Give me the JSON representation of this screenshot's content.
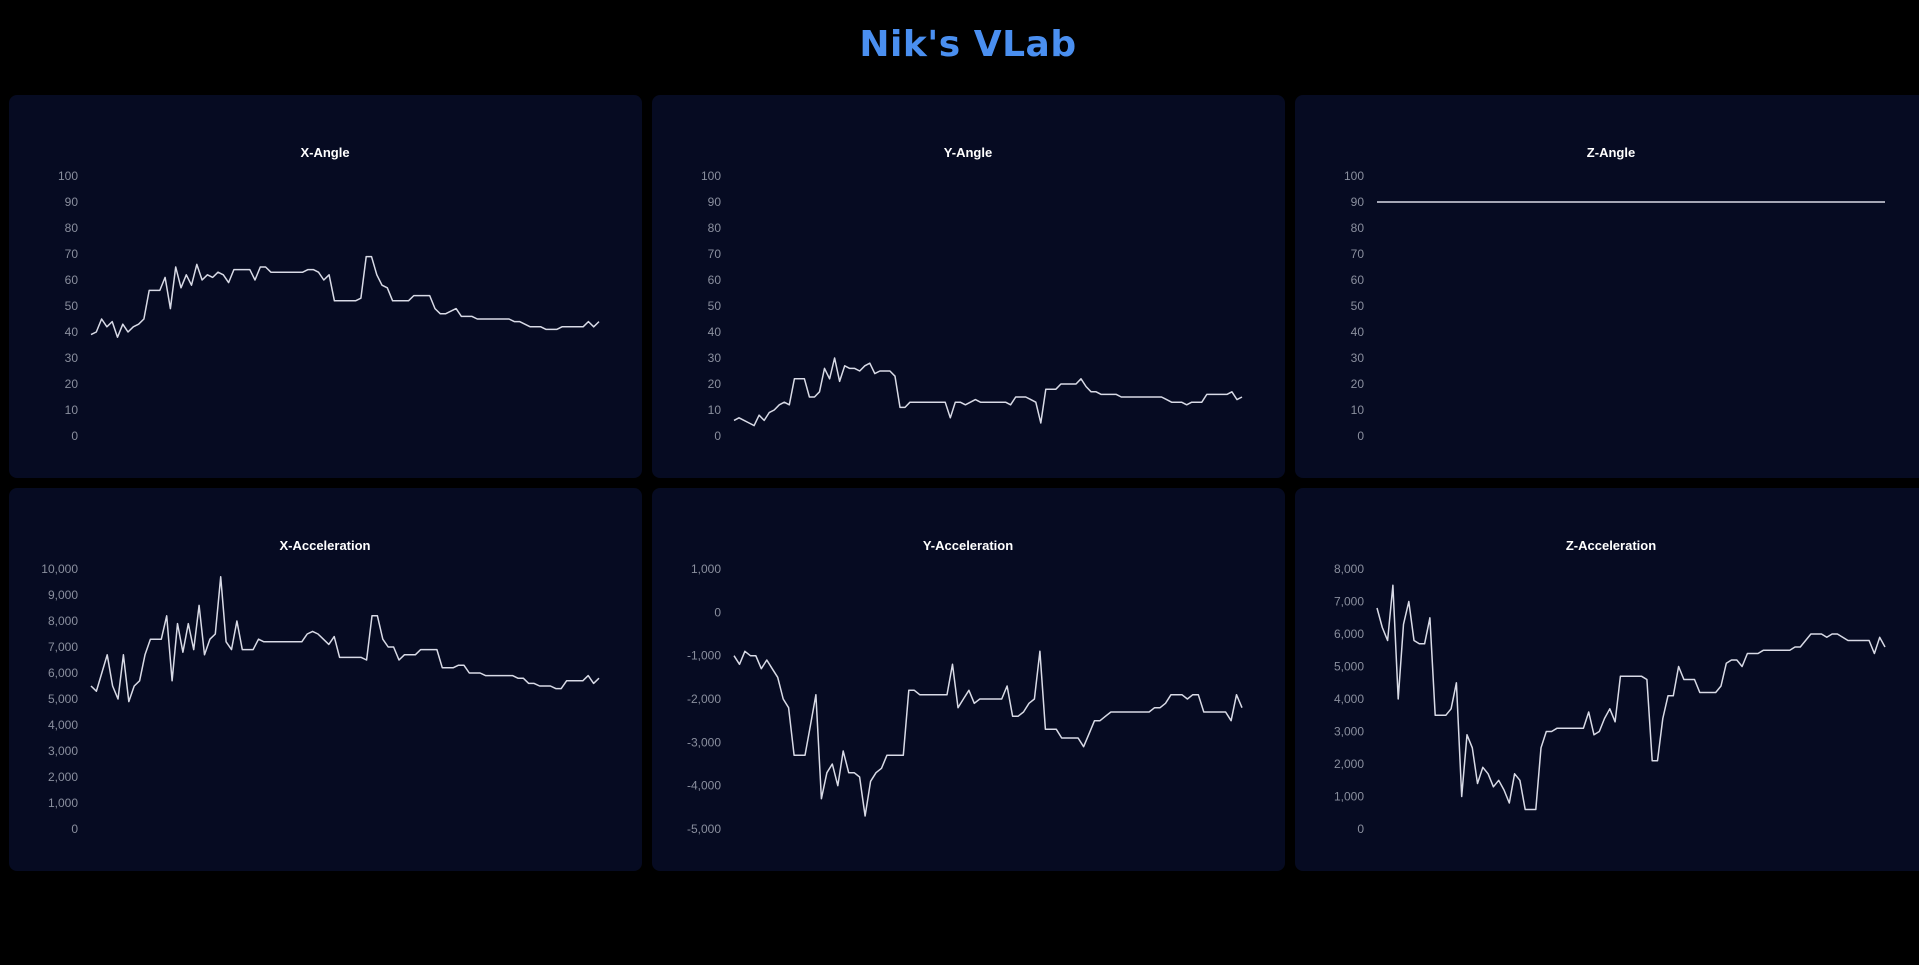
{
  "header": {
    "title": "Nik's VLab"
  },
  "colors": {
    "background": "#000000",
    "card": "#060b22",
    "title": "#4a8ff0",
    "line": "#d8dae6",
    "tick": "#8a8f9e"
  },
  "chart_data": [
    {
      "id": "x-angle",
      "type": "line",
      "title": "X-Angle",
      "ylim": [
        0,
        100
      ],
      "yticks": [
        0,
        10,
        20,
        30,
        40,
        50,
        60,
        70,
        80,
        90,
        100
      ],
      "ytick_labels": [
        "0",
        "10",
        "20",
        "30",
        "40",
        "50",
        "60",
        "70",
        "80",
        "90",
        "100"
      ],
      "grid": false,
      "values": [
        39,
        40,
        45,
        42,
        44,
        38,
        43,
        40,
        42,
        43,
        45,
        56,
        56,
        56,
        61,
        49,
        65,
        57,
        62,
        58,
        66,
        60,
        62,
        61,
        63,
        62,
        59,
        64,
        64,
        64,
        64,
        60,
        65,
        65,
        63,
        63,
        63,
        63,
        63,
        63,
        63,
        64,
        64,
        63,
        60,
        62,
        52,
        52,
        52,
        52,
        52,
        53,
        69,
        69,
        62,
        58,
        57,
        52,
        52,
        52,
        52,
        54,
        54,
        54,
        54,
        49,
        47,
        47,
        48,
        49,
        46,
        46,
        46,
        45,
        45,
        45,
        45,
        45,
        45,
        45,
        44,
        44,
        43,
        42,
        42,
        42,
        41,
        41,
        41,
        42,
        42,
        42,
        42,
        42,
        44,
        42,
        44
      ]
    },
    {
      "id": "y-angle",
      "type": "line",
      "title": "Y-Angle",
      "ylim": [
        0,
        100
      ],
      "yticks": [
        0,
        10,
        20,
        30,
        40,
        50,
        60,
        70,
        80,
        90,
        100
      ],
      "ytick_labels": [
        "0",
        "10",
        "20",
        "30",
        "40",
        "50",
        "60",
        "70",
        "80",
        "90",
        "100"
      ],
      "grid": false,
      "values": [
        6,
        7,
        6,
        5,
        4,
        8,
        6,
        9,
        10,
        12,
        13,
        12,
        22,
        22,
        22,
        15,
        15,
        17,
        26,
        22,
        30,
        21,
        27,
        26,
        26,
        25,
        27,
        28,
        24,
        25,
        25,
        25,
        23,
        11,
        11,
        13,
        13,
        13,
        13,
        13,
        13,
        13,
        13,
        7,
        13,
        13,
        12,
        13,
        14,
        13,
        13,
        13,
        13,
        13,
        13,
        12,
        15,
        15,
        15,
        14,
        13,
        5,
        18,
        18,
        18,
        20,
        20,
        20,
        20,
        22,
        19,
        17,
        17,
        16,
        16,
        16,
        16,
        15,
        15,
        15,
        15,
        15,
        15,
        15,
        15,
        15,
        14,
        13,
        13,
        13,
        12,
        13,
        13,
        13,
        16,
        16,
        16,
        16,
        16,
        17,
        14,
        15
      ]
    },
    {
      "id": "z-angle",
      "type": "line",
      "title": "Z-Angle",
      "ylim": [
        0,
        100
      ],
      "yticks": [
        0,
        10,
        20,
        30,
        40,
        50,
        60,
        70,
        80,
        90,
        100
      ],
      "ytick_labels": [
        "0",
        "10",
        "20",
        "30",
        "40",
        "50",
        "60",
        "70",
        "80",
        "90",
        "100"
      ],
      "grid": false,
      "values": [
        90,
        90,
        90,
        90,
        90,
        90,
        90,
        90,
        90,
        90,
        90,
        90,
        90,
        90,
        90,
        90,
        90,
        90,
        90,
        90,
        90,
        90,
        90,
        90,
        90,
        90,
        90,
        90,
        90,
        90,
        90,
        90,
        90,
        90,
        90,
        90,
        90,
        90,
        90,
        90,
        90,
        90,
        90,
        90,
        90,
        90,
        90,
        90,
        90,
        90
      ]
    },
    {
      "id": "x-acceleration",
      "type": "line",
      "title": "X-Acceleration",
      "ylim": [
        0,
        10000
      ],
      "yticks": [
        0,
        1000,
        2000,
        3000,
        4000,
        5000,
        6000,
        7000,
        8000,
        9000,
        10000
      ],
      "ytick_labels": [
        "0",
        "1,000",
        "2,000",
        "3,000",
        "4,000",
        "5,000",
        "6,000",
        "7,000",
        "8,000",
        "9,000",
        "10,000"
      ],
      "grid": false,
      "values": [
        5500,
        5300,
        6000,
        6700,
        5500,
        5000,
        6700,
        4900,
        5500,
        5700,
        6700,
        7300,
        7300,
        7300,
        8200,
        5700,
        7900,
        6800,
        7900,
        6900,
        8600,
        6700,
        7300,
        7500,
        9700,
        7200,
        6900,
        8000,
        6900,
        6900,
        6900,
        7300,
        7200,
        7200,
        7200,
        7200,
        7200,
        7200,
        7200,
        7200,
        7500,
        7600,
        7500,
        7300,
        7100,
        7400,
        6600,
        6600,
        6600,
        6600,
        6600,
        6500,
        8200,
        8200,
        7300,
        7000,
        7000,
        6500,
        6700,
        6700,
        6700,
        6900,
        6900,
        6900,
        6900,
        6200,
        6200,
        6200,
        6300,
        6300,
        6000,
        6000,
        6000,
        5900,
        5900,
        5900,
        5900,
        5900,
        5900,
        5800,
        5800,
        5600,
        5600,
        5500,
        5500,
        5500,
        5400,
        5400,
        5700,
        5700,
        5700,
        5700,
        5900,
        5600,
        5800
      ]
    },
    {
      "id": "y-acceleration",
      "type": "line",
      "title": "Y-Acceleration",
      "ylim": [
        -5000,
        1000
      ],
      "yticks": [
        -5000,
        -4000,
        -3000,
        -2000,
        -1000,
        0,
        1000
      ],
      "ytick_labels": [
        "-5,000",
        "-4,000",
        "-3,000",
        "-2,000",
        "-1,000",
        "0",
        "1,000"
      ],
      "grid": false,
      "values": [
        -1000,
        -1200,
        -900,
        -1000,
        -1000,
        -1300,
        -1100,
        -1300,
        -1500,
        -2000,
        -2200,
        -3300,
        -3300,
        -3300,
        -2600,
        -1900,
        -4300,
        -3700,
        -3500,
        -4000,
        -3200,
        -3700,
        -3700,
        -3800,
        -4700,
        -3900,
        -3700,
        -3600,
        -3300,
        -3300,
        -3300,
        -3300,
        -1800,
        -1800,
        -1900,
        -1900,
        -1900,
        -1900,
        -1900,
        -1900,
        -1200,
        -2200,
        -2000,
        -1800,
        -2100,
        -2000,
        -2000,
        -2000,
        -2000,
        -2000,
        -1700,
        -2400,
        -2400,
        -2300,
        -2100,
        -2000,
        -900,
        -2700,
        -2700,
        -2700,
        -2900,
        -2900,
        -2900,
        -2900,
        -3100,
        -2800,
        -2500,
        -2500,
        -2400,
        -2300,
        -2300,
        -2300,
        -2300,
        -2300,
        -2300,
        -2300,
        -2300,
        -2200,
        -2200,
        -2100,
        -1900,
        -1900,
        -1900,
        -2000,
        -1900,
        -1900,
        -2300,
        -2300,
        -2300,
        -2300,
        -2300,
        -2500,
        -1900,
        -2200
      ]
    },
    {
      "id": "z-acceleration",
      "type": "line",
      "title": "Z-Acceleration",
      "ylim": [
        0,
        8000
      ],
      "yticks": [
        0,
        1000,
        2000,
        3000,
        4000,
        5000,
        6000,
        7000,
        8000
      ],
      "ytick_labels": [
        "0",
        "1,000",
        "2,000",
        "3,000",
        "4,000",
        "5,000",
        "6,000",
        "7,000",
        "8,000"
      ],
      "grid": false,
      "values": [
        6800,
        6200,
        5800,
        7500,
        4000,
        6300,
        7000,
        5800,
        5700,
        5700,
        6500,
        3500,
        3500,
        3500,
        3700,
        4500,
        1000,
        2900,
        2500,
        1400,
        1900,
        1700,
        1300,
        1500,
        1200,
        800,
        1700,
        1500,
        600,
        600,
        600,
        2500,
        3000,
        3000,
        3100,
        3100,
        3100,
        3100,
        3100,
        3100,
        3600,
        2900,
        3000,
        3400,
        3700,
        3300,
        4700,
        4700,
        4700,
        4700,
        4700,
        4600,
        2100,
        2100,
        3400,
        4100,
        4100,
        5000,
        4600,
        4600,
        4600,
        4200,
        4200,
        4200,
        4200,
        4400,
        5100,
        5200,
        5200,
        5000,
        5400,
        5400,
        5400,
        5500,
        5500,
        5500,
        5500,
        5500,
        5500,
        5600,
        5600,
        5800,
        6000,
        6000,
        6000,
        5900,
        6000,
        6000,
        5900,
        5800,
        5800,
        5800,
        5800,
        5800,
        5400,
        5900,
        5600
      ]
    }
  ]
}
